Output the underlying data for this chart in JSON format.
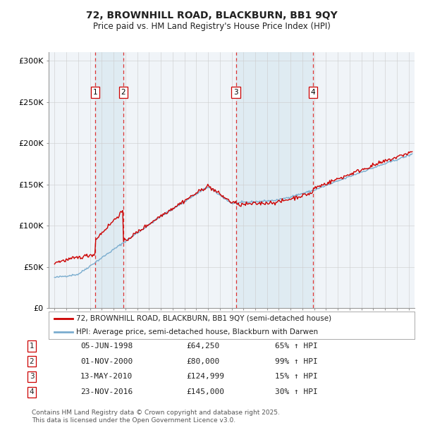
{
  "title": "72, BROWNHILL ROAD, BLACKBURN, BB1 9QY",
  "subtitle": "Price paid vs. HM Land Registry's House Price Index (HPI)",
  "legend_line1": "72, BROWNHILL ROAD, BLACKBURN, BB1 9QY (semi-detached house)",
  "legend_line2": "HPI: Average price, semi-detached house, Blackburn with Darwen",
  "footer1": "Contains HM Land Registry data © Crown copyright and database right 2025.",
  "footer2": "This data is licensed under the Open Government Licence v3.0.",
  "transactions": [
    {
      "num": 1,
      "date": "05-JUN-1998",
      "price": 64250,
      "hpi_pct": "65% ↑ HPI",
      "x_year": 1998.43
    },
    {
      "num": 2,
      "date": "01-NOV-2000",
      "price": 80000,
      "hpi_pct": "99% ↑ HPI",
      "x_year": 2000.83
    },
    {
      "num": 3,
      "date": "13-MAY-2010",
      "price": 124999,
      "hpi_pct": "15% ↑ HPI",
      "x_year": 2010.37
    },
    {
      "num": 4,
      "date": "23-NOV-2016",
      "price": 145000,
      "hpi_pct": "30% ↑ HPI",
      "x_year": 2016.9
    }
  ],
  "ylim": [
    0,
    310000
  ],
  "yticks": [
    0,
    50000,
    100000,
    150000,
    200000,
    250000,
    300000
  ],
  "ytick_labels": [
    "£0",
    "£50K",
    "£100K",
    "£150K",
    "£200K",
    "£250K",
    "£300K"
  ],
  "xlim_start": 1994.5,
  "xlim_end": 2025.5,
  "red_color": "#cc0000",
  "blue_color": "#7aadcf",
  "bg_color": "#ffffff",
  "plot_bg_color": "#f0f4f8",
  "grid_color": "#cccccc",
  "vline_color": "#dd3333",
  "shade_color": "#d8e8f0"
}
